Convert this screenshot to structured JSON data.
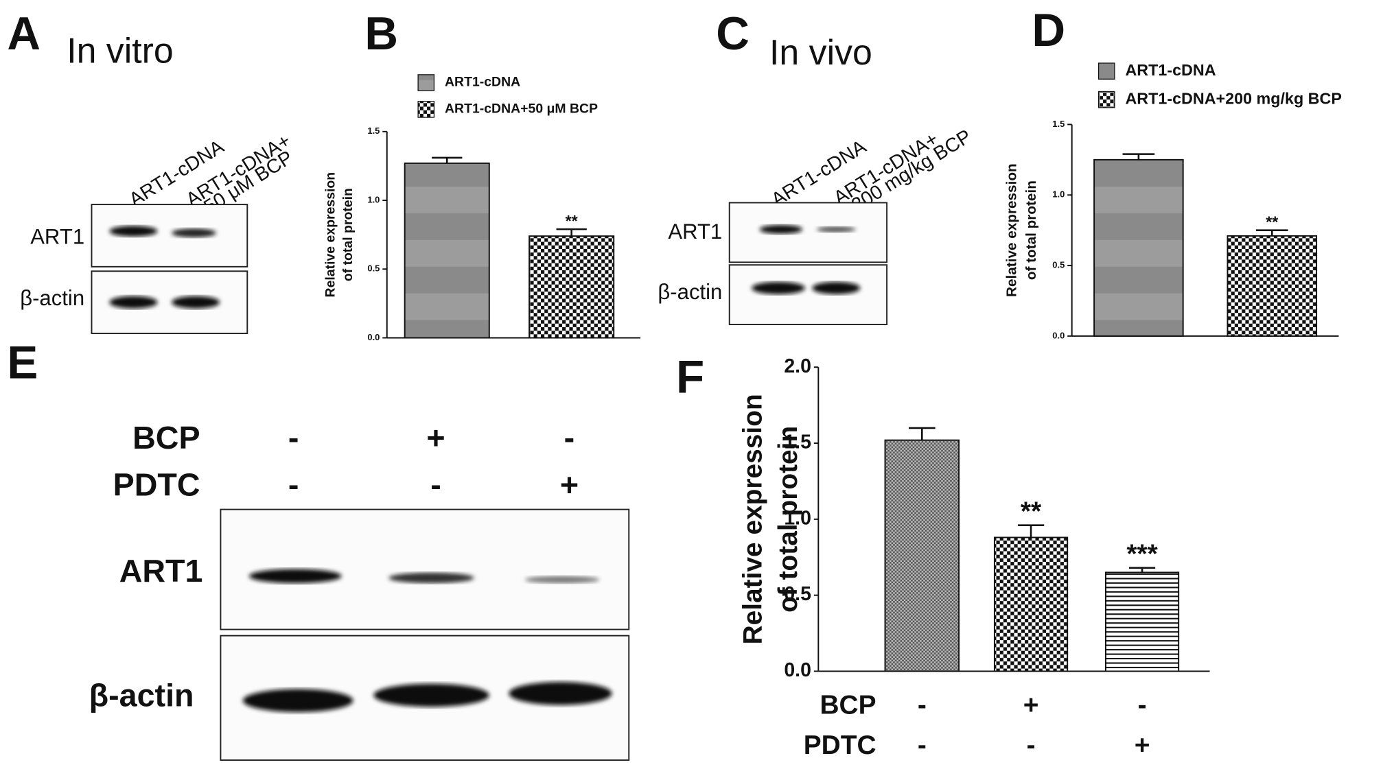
{
  "panels": {
    "A": {
      "letter": "A",
      "title": "In vitro",
      "lanes": [
        [
          "ART1-cDNA"
        ],
        [
          "ART1-cDNA+",
          "50 μM BCP"
        ]
      ],
      "rows": [
        "ART1",
        "β-actin"
      ]
    },
    "C": {
      "letter": "C",
      "title": "In vivo",
      "lanes": [
        [
          "ART1-cDNA"
        ],
        [
          "ART1-cDNA+",
          "200 mg/kg BCP"
        ]
      ],
      "rows": [
        "ART1",
        "β-actin"
      ]
    },
    "E": {
      "letter": "E",
      "conditions": [
        {
          "name": "BCP",
          "signs": [
            "-",
            "+",
            "-"
          ]
        },
        {
          "name": "PDTC",
          "signs": [
            "-",
            "-",
            "+"
          ]
        }
      ],
      "rows": [
        "ART1",
        "β-actin"
      ]
    }
  },
  "chart_data": [
    {
      "type": "bar",
      "letter": "B",
      "ylabel": [
        "Relative expression",
        "of total protein"
      ],
      "ylim": [
        0,
        1.5
      ],
      "yticks": [
        {
          "value": 0,
          "label": "0.0"
        },
        0.5,
        {
          "value": 1,
          "label": "1.0"
        },
        1.5
      ],
      "series": [
        {
          "name": "ART1-cDNA",
          "pattern": "stripe",
          "values": [
            1.27
          ],
          "errors": [
            0.04
          ],
          "annotations": [
            null
          ]
        },
        {
          "name": "ART1-cDNA+50 μM BCP",
          "pattern": "checker",
          "values": [
            0.74
          ],
          "errors": [
            0.05
          ],
          "annotations": [
            "**"
          ]
        }
      ]
    },
    {
      "type": "bar",
      "letter": "D",
      "ylabel": [
        "Relative expression",
        "of total protein"
      ],
      "ylim": [
        0,
        1.5
      ],
      "yticks": [
        {
          "value": 0,
          "label": "0.0"
        },
        0.5,
        {
          "value": 1,
          "label": "1.0"
        },
        1.5
      ],
      "series": [
        {
          "name": "ART1-cDNA",
          "pattern": "stripe",
          "values": [
            1.25
          ],
          "errors": [
            0.04
          ],
          "annotations": [
            null
          ]
        },
        {
          "name": "ART1-cDNA+200 mg/kg BCP",
          "pattern": "checker",
          "values": [
            0.71
          ],
          "errors": [
            0.04
          ],
          "annotations": [
            "**"
          ]
        }
      ]
    },
    {
      "type": "bar",
      "letter": "F",
      "ylabel": [
        "Relative expression",
        "of total protein"
      ],
      "ylim": [
        0,
        2
      ],
      "yticks": [
        {
          "value": 0,
          "label": "0.0"
        },
        0.5,
        {
          "value": 1,
          "label": "1.0"
        },
        1.5,
        {
          "value": 2,
          "label": "2.0"
        }
      ],
      "x_rows": [
        {
          "name": "BCP",
          "signs": [
            "-",
            "+",
            "-"
          ]
        },
        {
          "name": "PDTC",
          "signs": [
            "-",
            "-",
            "+"
          ]
        }
      ],
      "series": [
        {
          "pattern": "fine",
          "values": [
            1.52
          ],
          "errors": [
            0.08
          ],
          "annotations": [
            null
          ]
        },
        {
          "pattern": "checker",
          "values": [
            0.88
          ],
          "errors": [
            0.08
          ],
          "annotations": [
            "**"
          ]
        },
        {
          "pattern": "hlines",
          "values": [
            0.65
          ],
          "errors": [
            0.03
          ],
          "annotations": [
            "***"
          ]
        }
      ]
    }
  ]
}
